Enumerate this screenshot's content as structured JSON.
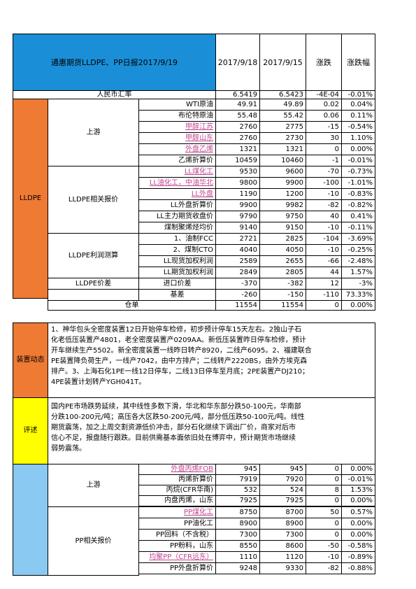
{
  "header": {
    "title": "通惠期货LLDPE、PP日报2017/9/19",
    "date1": "2017/9/18",
    "date2": "2017/9/15",
    "change": "涨跌",
    "change_pct": "涨跌幅"
  },
  "fx": {
    "label": "人民币汇率",
    "v1": "6.5419",
    "v2": "6.5423",
    "chg": "-4E-04",
    "pct": "-0.01%"
  },
  "lldpe": {
    "section": "LLDPE",
    "upstream_label": "上游",
    "upstream": [
      {
        "name": "WTI原油",
        "v1": "49.91",
        "v2": "49.89",
        "chg": "0.02",
        "pct": "0.04%"
      },
      {
        "name": "布伦特原油",
        "v1": "55.48",
        "v2": "55.42",
        "chg": "0.06",
        "pct": "0.11%"
      },
      {
        "name": "甲醇江苏",
        "v1": "2760",
        "v2": "2775",
        "chg": "-15",
        "pct": "-0.54%"
      },
      {
        "name": "甲醇山东",
        "v1": "2760",
        "v2": "2730",
        "chg": "30",
        "pct": "1.10%"
      },
      {
        "name": "外盘乙烯",
        "v1": "1321",
        "v2": "1321",
        "chg": "0",
        "pct": "0.00%"
      },
      {
        "name": "乙烯折算价",
        "v1": "10459",
        "v2": "10460",
        "chg": "-1",
        "pct": "-0.01%"
      }
    ],
    "quotes_label": "LLDPE相关报价",
    "quotes": [
      {
        "name": "LL煤化工",
        "v1": "9530",
        "v2": "9600",
        "chg": "-70",
        "pct": "-0.73%"
      },
      {
        "name": "LL油化工，中油华北",
        "v1": "9800",
        "v2": "9900",
        "chg": "-100",
        "pct": "-1.01%"
      },
      {
        "name": "LL外盘",
        "v1": "1190",
        "v2": "1200",
        "chg": "-10",
        "pct": "-0.83%"
      },
      {
        "name": "LL外盘折算价",
        "v1": "9900",
        "v2": "9982",
        "chg": "-82",
        "pct": "-0.82%"
      },
      {
        "name": "LL主力期货收盘价",
        "v1": "9790",
        "v2": "9750",
        "chg": "40",
        "pct": "0.41%"
      },
      {
        "name": "煤制聚烯烃均价",
        "v1": "9140",
        "v2": "9150",
        "chg": "-10",
        "pct": "-0.11%"
      }
    ],
    "profit_label": "LLDPE利润测算",
    "profit": [
      {
        "name": "1、油制FCC",
        "v1": "2721",
        "v2": "2825",
        "chg": "-104",
        "pct": "-3.69%"
      },
      {
        "name": "2、煤制CTO",
        "v1": "4040",
        "v2": "4050",
        "chg": "-10",
        "pct": "-0.25%"
      },
      {
        "name": "LL现货加权利润",
        "v1": "2589",
        "v2": "2655",
        "chg": "-66",
        "pct": "-2.48%"
      },
      {
        "name": "LL期货加权利润",
        "v1": "2849",
        "v2": "2805",
        "chg": "44",
        "pct": "1.57%"
      }
    ],
    "spread_label": "LLDPE价差",
    "spread": [
      {
        "name": "进口价差",
        "v1": "-370",
        "v2": "-382",
        "chg": "12",
        "pct": "-3%"
      },
      {
        "name": "基差",
        "v1": "-260",
        "v2": "-150",
        "chg": "-110",
        "pct": "73.33%"
      }
    ],
    "warehouse": {
      "name": "仓单",
      "v1": "11554",
      "v2": "11554",
      "chg": "0",
      "pct": "0.00%"
    }
  },
  "device": {
    "label": "装置动态",
    "lines": [
      "1、神华包头全密度装置12日开始停车检修，初步预计停车15天左右。2独山子石",
      "化老低压装置产4801，老全密度装置产0209AA。新低压装置昨日停车检修，预计",
      "开车继续生产5502。新全密度装置一线昨日转产8920，二线产6095。2、福建联合",
      "PE装置降负荷生产，一线产7042，由中方排产；二线转产2220BS，由外方埃克森",
      "排产。3、上海石化1PE一线12日停车，二线13日停车至月底；2PE装置产DJ210；",
      "4PE装置计划转产YGH041T。"
    ]
  },
  "comment": {
    "label": "评述",
    "lines": [
      "国内PE市场跌势延续，其中线性多数下滑，华北和华东部分跌50-100元，华南部",
      "分跌100-200元/吨；高压各大区跌50-200元/吨，部分低压跌50-100元/吨。线性",
      "期货震荡，加之上周交割资源低价冲击，部分石化继续下调出厂价，商家对后市",
      "信心不足，报盘随行跟跌。目前供需基本面依旧处在博弈中，预计期货市场继续",
      "弱势震荡。"
    ]
  },
  "pp": {
    "upstream_label": "上游",
    "upstream": [
      {
        "name": "外盘丙烯FOB",
        "v1": "945",
        "v2": "945",
        "chg": "0",
        "pct": "0.00%"
      },
      {
        "name": "丙烯折算价",
        "v1": "7919",
        "v2": "7920",
        "chg": "0",
        "pct": "-0.01%"
      },
      {
        "name": "丙烷(CFR华南)",
        "v1": "532",
        "v2": "524",
        "chg": "8",
        "pct": "1.53%"
      },
      {
        "name": "内盘丙烯，山东",
        "v1": "7925",
        "v2": "7925",
        "chg": "0",
        "pct": "0.00%"
      }
    ],
    "quotes_label": "PP相关报价",
    "quotes": [
      {
        "name": "PP煤化工",
        "v1": "8750",
        "v2": "8700",
        "chg": "50",
        "pct": "0.57%"
      },
      {
        "name": "PP油化工",
        "v1": "8900",
        "v2": "8900",
        "chg": "0",
        "pct": "0.00%"
      },
      {
        "name": "PP回料（不含税）",
        "v1": "7300",
        "v2": "7300",
        "chg": "0",
        "pct": "0.00%"
      },
      {
        "name": "PP粉料，山东",
        "v1": "8550",
        "v2": "8600",
        "chg": "-50",
        "pct": "-0.58%"
      },
      {
        "name": "均聚PP（CFR远东）",
        "v1": "1110",
        "v2": "1120",
        "chg": "-10",
        "pct": "-0.89%"
      },
      {
        "name": "PP外盘折算价",
        "v1": "9248",
        "v2": "9330",
        "chg": "-82",
        "pct": "-0.88%"
      }
    ]
  },
  "colors": {
    "title_bg": "#1a8fd8",
    "lldpe_bg": "#ee7a33",
    "device_bg": "#ee7a33",
    "comment_bg": "#ffff00",
    "pp_bg": "#8ac9f2",
    "link_text": "#c2448f"
  }
}
